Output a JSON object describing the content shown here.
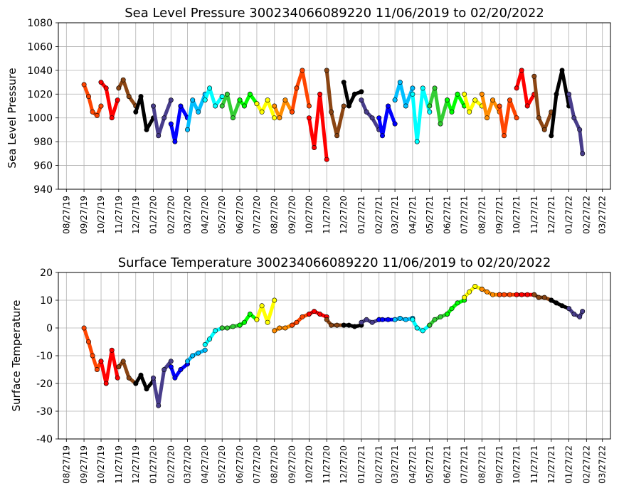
{
  "chart_data": [
    {
      "type": "scatter",
      "title": "Sea Level Pressure 300234066089220  11/06/2019 to 02/20/2022",
      "xlabel": "",
      "ylabel": "Sea Level Pressure",
      "ylim": [
        940,
        1080
      ],
      "yticks": [
        940,
        960,
        980,
        1000,
        1020,
        1040,
        1060,
        1080
      ],
      "xticks": [
        "08/27/19",
        "09/27/19",
        "10/27/19",
        "11/27/19",
        "12/27/19",
        "01/27/20",
        "02/27/20",
        "03/27/20",
        "04/27/20",
        "05/27/20",
        "06/27/20",
        "07/27/20",
        "08/27/20",
        "09/27/20",
        "10/27/20",
        "11/27/20",
        "12/27/20",
        "01/27/21",
        "02/27/21",
        "03/27/21",
        "04/27/21",
        "05/27/21",
        "06/27/21",
        "07/27/21",
        "08/27/21",
        "09/27/21",
        "10/27/21",
        "11/27/21",
        "12/27/21",
        "01/27/22",
        "02/27/22",
        "03/27/22"
      ],
      "grid": true,
      "series": [
        {
          "color": "#ff4500",
          "x": [
            "09/27/19",
            "10/05/19",
            "10/12/19",
            "10/20/19",
            "10/27/19"
          ],
          "y": [
            1028,
            1018,
            1005,
            1002,
            1010
          ]
        },
        {
          "color": "#ff0000",
          "x": [
            "10/27/19",
            "11/05/19",
            "11/15/19",
            "11/25/19"
          ],
          "y": [
            1030,
            1025,
            1000,
            1015
          ]
        },
        {
          "color": "#8b4513",
          "x": [
            "11/27/19",
            "12/05/19",
            "12/15/19",
            "12/27/19"
          ],
          "y": [
            1025,
            1032,
            1018,
            1010
          ]
        },
        {
          "color": "#000000",
          "x": [
            "12/27/19",
            "01/05/20",
            "01/15/20",
            "01/27/20"
          ],
          "y": [
            1005,
            1018,
            990,
            1000
          ]
        },
        {
          "color": "#483d8b",
          "x": [
            "01/27/20",
            "02/05/20",
            "02/15/20",
            "02/27/20"
          ],
          "y": [
            1010,
            985,
            1000,
            1015
          ]
        },
        {
          "color": "#0000ff",
          "x": [
            "02/27/20",
            "03/05/20",
            "03/15/20",
            "03/27/20"
          ],
          "y": [
            995,
            980,
            1010,
            1000
          ]
        },
        {
          "color": "#00bfff",
          "x": [
            "03/27/20",
            "04/05/20",
            "04/15/20",
            "04/27/20"
          ],
          "y": [
            990,
            1015,
            1005,
            1020
          ]
        },
        {
          "color": "#00ffff",
          "x": [
            "04/27/20",
            "05/05/20",
            "05/15/20",
            "05/27/20"
          ],
          "y": [
            1015,
            1025,
            1010,
            1018
          ]
        },
        {
          "color": "#32cd32",
          "x": [
            "05/27/20",
            "06/05/20",
            "06/15/20",
            "06/27/20"
          ],
          "y": [
            1010,
            1020,
            1000,
            1015
          ]
        },
        {
          "color": "#00ff00",
          "x": [
            "06/27/20",
            "07/05/20",
            "07/15/20",
            "07/27/20"
          ],
          "y": [
            1015,
            1010,
            1020,
            1012
          ]
        },
        {
          "color": "#ffff00",
          "x": [
            "07/27/20",
            "08/05/20",
            "08/15/20",
            "08/27/20"
          ],
          "y": [
            1012,
            1005,
            1015,
            1000
          ]
        },
        {
          "color": "#ff8c00",
          "x": [
            "08/27/20",
            "09/05/20",
            "09/15/20",
            "09/27/20"
          ],
          "y": [
            1010,
            1000,
            1015,
            1005
          ]
        },
        {
          "color": "#ff4500",
          "x": [
            "09/27/20",
            "10/05/20",
            "10/15/20",
            "10/27/20"
          ],
          "y": [
            1005,
            1025,
            1040,
            1010
          ]
        },
        {
          "color": "#ff0000",
          "x": [
            "10/27/20",
            "11/05/20",
            "11/15/20",
            "11/27/20"
          ],
          "y": [
            1000,
            975,
            1020,
            965
          ]
        },
        {
          "color": "#8b4513",
          "x": [
            "11/27/20",
            "12/05/20",
            "12/15/20",
            "12/27/20"
          ],
          "y": [
            1040,
            1005,
            985,
            1010
          ]
        },
        {
          "color": "#000000",
          "x": [
            "12/27/20",
            "01/05/21",
            "01/15/21",
            "01/27/21"
          ],
          "y": [
            1030,
            1010,
            1020,
            1022
          ]
        },
        {
          "color": "#483d8b",
          "x": [
            "01/27/21",
            "02/05/21",
            "02/15/21",
            "02/27/21"
          ],
          "y": [
            1015,
            1005,
            1000,
            990
          ]
        },
        {
          "color": "#0000ff",
          "x": [
            "02/27/21",
            "03/05/21",
            "03/15/21",
            "03/27/21"
          ],
          "y": [
            1000,
            985,
            1010,
            995
          ]
        },
        {
          "color": "#00bfff",
          "x": [
            "03/27/21",
            "04/05/21",
            "04/15/21",
            "04/27/21"
          ],
          "y": [
            1015,
            1030,
            1010,
            1025
          ]
        },
        {
          "color": "#00ffff",
          "x": [
            "04/27/21",
            "05/05/21",
            "05/15/21",
            "05/27/21"
          ],
          "y": [
            1020,
            980,
            1025,
            1005
          ]
        },
        {
          "color": "#32cd32",
          "x": [
            "05/27/21",
            "06/05/21",
            "06/15/21",
            "06/27/21"
          ],
          "y": [
            1010,
            1025,
            995,
            1015
          ]
        },
        {
          "color": "#00ff00",
          "x": [
            "06/27/21",
            "07/05/21",
            "07/15/21",
            "07/27/21"
          ],
          "y": [
            1015,
            1005,
            1020,
            1010
          ]
        },
        {
          "color": "#ffff00",
          "x": [
            "07/27/21",
            "08/05/21",
            "08/15/21",
            "08/27/21"
          ],
          "y": [
            1020,
            1005,
            1015,
            1010
          ]
        },
        {
          "color": "#ff8c00",
          "x": [
            "08/27/21",
            "09/05/21",
            "09/15/21",
            "09/27/21"
          ],
          "y": [
            1020,
            1000,
            1015,
            1005
          ]
        },
        {
          "color": "#ff4500",
          "x": [
            "09/27/21",
            "10/05/21",
            "10/15/21",
            "10/27/21"
          ],
          "y": [
            1010,
            985,
            1015,
            1000
          ]
        },
        {
          "color": "#ff0000",
          "x": [
            "10/27/21",
            "11/05/21",
            "11/15/21",
            "11/27/21"
          ],
          "y": [
            1025,
            1040,
            1010,
            1020
          ]
        },
        {
          "color": "#8b4513",
          "x": [
            "11/27/21",
            "12/05/21",
            "12/15/21",
            "12/27/21"
          ],
          "y": [
            1035,
            1000,
            990,
            1005
          ]
        },
        {
          "color": "#000000",
          "x": [
            "12/27/21",
            "01/05/22",
            "01/15/22",
            "01/27/22"
          ],
          "y": [
            985,
            1020,
            1040,
            1010
          ]
        },
        {
          "color": "#483d8b",
          "x": [
            "01/27/22",
            "02/05/22",
            "02/15/22",
            "02/20/22"
          ],
          "y": [
            1020,
            1000,
            990,
            970
          ]
        }
      ]
    },
    {
      "type": "scatter",
      "title": "Surface Temperature 300234066089220  11/06/2019 to 02/20/2022",
      "xlabel": "",
      "ylabel": "Surface Temperature",
      "ylim": [
        -40,
        20
      ],
      "yticks": [
        -40,
        -30,
        -20,
        -10,
        0,
        10,
        20
      ],
      "xticks": [
        "08/27/19",
        "09/27/19",
        "10/27/19",
        "11/27/19",
        "12/27/19",
        "01/27/20",
        "02/27/20",
        "03/27/20",
        "04/27/20",
        "05/27/20",
        "06/27/20",
        "07/27/20",
        "08/27/20",
        "09/27/20",
        "10/27/20",
        "11/27/20",
        "12/27/20",
        "01/27/21",
        "02/27/21",
        "03/27/21",
        "04/27/21",
        "05/27/21",
        "06/27/21",
        "07/27/21",
        "08/27/21",
        "09/27/21",
        "10/27/21",
        "11/27/21",
        "12/27/21",
        "01/27/22",
        "02/27/22",
        "03/27/22"
      ],
      "grid": true,
      "series": [
        {
          "color": "#ff4500",
          "x": [
            "09/27/19",
            "10/05/19",
            "10/12/19",
            "10/20/19",
            "10/27/19"
          ],
          "y": [
            0,
            -5,
            -10,
            -15,
            -12
          ]
        },
        {
          "color": "#ff0000",
          "x": [
            "10/27/19",
            "11/05/19",
            "11/15/19",
            "11/25/19"
          ],
          "y": [
            -12,
            -20,
            -8,
            -18
          ]
        },
        {
          "color": "#8b4513",
          "x": [
            "11/27/19",
            "12/05/19",
            "12/15/19",
            "12/27/19"
          ],
          "y": [
            -14,
            -12,
            -18,
            -20
          ]
        },
        {
          "color": "#000000",
          "x": [
            "12/27/19",
            "01/05/20",
            "01/15/20",
            "01/27/20"
          ],
          "y": [
            -20,
            -17,
            -22,
            -19
          ]
        },
        {
          "color": "#483d8b",
          "x": [
            "01/27/20",
            "02/05/20",
            "02/15/20",
            "02/27/20"
          ],
          "y": [
            -18,
            -28,
            -15,
            -12
          ]
        },
        {
          "color": "#0000ff",
          "x": [
            "02/27/20",
            "03/05/20",
            "03/15/20",
            "03/27/20"
          ],
          "y": [
            -14,
            -18,
            -15,
            -13
          ]
        },
        {
          "color": "#00bfff",
          "x": [
            "03/27/20",
            "04/05/20",
            "04/15/20",
            "04/27/20"
          ],
          "y": [
            -12,
            -10,
            -9,
            -8
          ]
        },
        {
          "color": "#00ffff",
          "x": [
            "04/27/20",
            "05/05/20",
            "05/15/20",
            "05/27/20"
          ],
          "y": [
            -6,
            -4,
            -1,
            0
          ]
        },
        {
          "color": "#32cd32",
          "x": [
            "05/27/20",
            "06/05/20",
            "06/15/20",
            "06/27/20"
          ],
          "y": [
            0,
            0,
            0.5,
            1
          ]
        },
        {
          "color": "#00ff00",
          "x": [
            "06/27/20",
            "07/05/20",
            "07/15/20",
            "07/27/20"
          ],
          "y": [
            1,
            2,
            5,
            3
          ]
        },
        {
          "color": "#ffff00",
          "x": [
            "07/27/20",
            "08/05/20",
            "08/15/20",
            "08/27/20"
          ],
          "y": [
            3,
            8,
            2,
            10
          ]
        },
        {
          "color": "#ff8c00",
          "x": [
            "08/27/20",
            "09/05/20",
            "09/15/20",
            "09/27/20"
          ],
          "y": [
            -1,
            0,
            0,
            1
          ]
        },
        {
          "color": "#ff4500",
          "x": [
            "09/27/20",
            "10/05/20",
            "10/15/20",
            "10/27/20"
          ],
          "y": [
            1,
            2,
            4,
            5
          ]
        },
        {
          "color": "#ff0000",
          "x": [
            "10/27/20",
            "11/05/20",
            "11/15/20",
            "11/27/20"
          ],
          "y": [
            5,
            6,
            5,
            4
          ]
        },
        {
          "color": "#8b4513",
          "x": [
            "11/27/20",
            "12/05/20",
            "12/15/20",
            "12/27/20"
          ],
          "y": [
            3,
            1,
            1,
            1
          ]
        },
        {
          "color": "#000000",
          "x": [
            "12/27/20",
            "01/05/21",
            "01/15/21",
            "01/27/21"
          ],
          "y": [
            1,
            1,
            0.5,
            1
          ]
        },
        {
          "color": "#483d8b",
          "x": [
            "01/27/21",
            "02/05/21",
            "02/15/21",
            "02/27/21"
          ],
          "y": [
            2,
            3,
            2,
            3
          ]
        },
        {
          "color": "#0000ff",
          "x": [
            "02/27/21",
            "03/05/21",
            "03/15/21",
            "03/27/21"
          ],
          "y": [
            3,
            3,
            3,
            3
          ]
        },
        {
          "color": "#00bfff",
          "x": [
            "03/27/21",
            "04/05/21",
            "04/15/21",
            "04/27/21"
          ],
          "y": [
            3,
            3.5,
            3,
            3.5
          ]
        },
        {
          "color": "#00ffff",
          "x": [
            "04/27/21",
            "05/05/21",
            "05/15/21",
            "05/27/21"
          ],
          "y": [
            3,
            0,
            -1,
            1
          ]
        },
        {
          "color": "#32cd32",
          "x": [
            "05/27/21",
            "06/05/21",
            "06/15/21",
            "06/27/21"
          ],
          "y": [
            1,
            3,
            4,
            5
          ]
        },
        {
          "color": "#00ff00",
          "x": [
            "06/27/21",
            "07/05/21",
            "07/15/21",
            "07/27/21"
          ],
          "y": [
            5,
            7,
            9,
            10
          ]
        },
        {
          "color": "#ffff00",
          "x": [
            "07/27/21",
            "08/05/21",
            "08/15/21",
            "08/27/21"
          ],
          "y": [
            11,
            13,
            15,
            14
          ]
        },
        {
          "color": "#ff8c00",
          "x": [
            "08/27/21",
            "09/05/21",
            "09/15/21",
            "09/27/21"
          ],
          "y": [
            14,
            13,
            12,
            12
          ]
        },
        {
          "color": "#ff4500",
          "x": [
            "09/27/21",
            "10/05/21",
            "10/15/21",
            "10/27/21"
          ],
          "y": [
            12,
            12,
            12,
            12
          ]
        },
        {
          "color": "#ff0000",
          "x": [
            "10/27/21",
            "11/05/21",
            "11/15/21",
            "11/27/21"
          ],
          "y": [
            12,
            12,
            12,
            12
          ]
        },
        {
          "color": "#8b4513",
          "x": [
            "11/27/21",
            "12/05/21",
            "12/15/21",
            "12/27/21"
          ],
          "y": [
            12,
            11,
            11,
            10
          ]
        },
        {
          "color": "#000000",
          "x": [
            "12/27/21",
            "01/05/22",
            "01/15/22",
            "01/27/22"
          ],
          "y": [
            10,
            9,
            8,
            7
          ]
        },
        {
          "color": "#483d8b",
          "x": [
            "01/27/22",
            "02/05/22",
            "02/15/22",
            "02/20/22"
          ],
          "y": [
            7,
            5,
            4,
            6
          ]
        }
      ]
    }
  ]
}
